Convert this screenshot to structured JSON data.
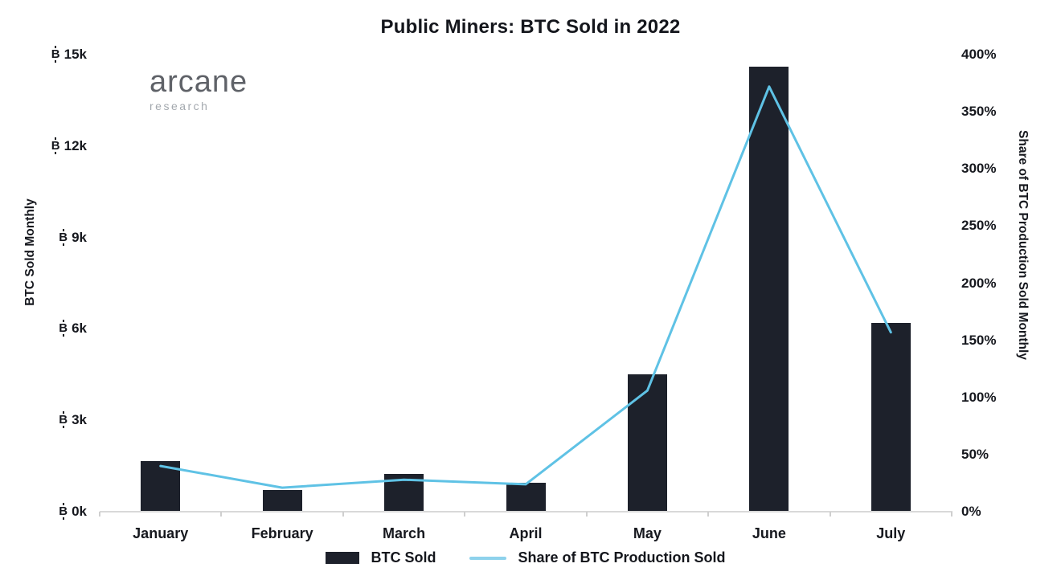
{
  "title": "Public Miners: BTC Sold in 2022",
  "logo": {
    "name": "arcane",
    "sub": "research"
  },
  "chart_data": {
    "type": "bar+line",
    "title": "Public Miners: BTC Sold in 2022",
    "categories": [
      "January",
      "February",
      "March",
      "April",
      "May",
      "June",
      "July"
    ],
    "series": [
      {
        "name": "BTC Sold",
        "type": "bar",
        "axis": "left",
        "color": "#1d212b",
        "values": [
          1650,
          700,
          1250,
          950,
          4500,
          14600,
          6200
        ]
      },
      {
        "name": "Share of BTC Production Sold",
        "type": "line",
        "axis": "right",
        "color": "#5fc2e5",
        "values": [
          40,
          21,
          28,
          24,
          106,
          372,
          157
        ]
      }
    ],
    "left_axis": {
      "label": "BTC Sold Monthly",
      "symbol": "฿",
      "symbol_char": "B",
      "unit": "k",
      "tick_values_k": [
        0,
        3,
        6,
        9,
        12,
        15
      ],
      "range_btc": [
        0,
        15000
      ]
    },
    "right_axis": {
      "label": "Share of BTC Production Sold Monthly",
      "unit": "%",
      "tick_values": [
        0,
        50,
        100,
        150,
        200,
        250,
        300,
        350,
        400
      ],
      "range_percent": [
        0,
        400
      ]
    },
    "legend_position": "bottom",
    "grid": false,
    "background": "#ffffff"
  }
}
